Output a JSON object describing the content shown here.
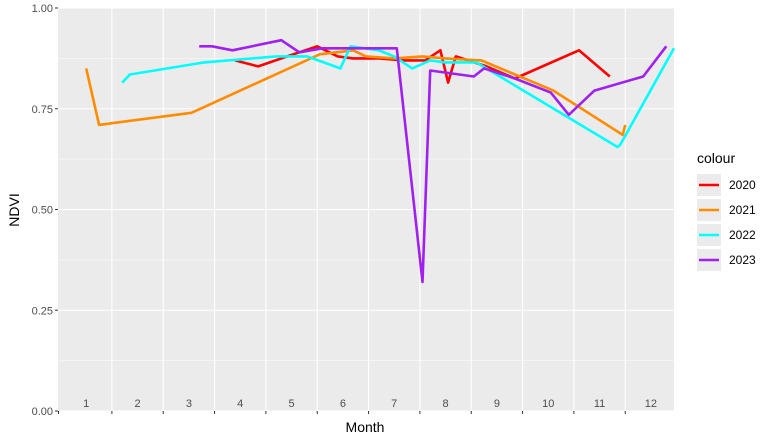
{
  "chart_data": {
    "type": "line",
    "xlabel": "Month",
    "ylabel": "NDVI",
    "ylim": [
      0,
      1
    ],
    "xlim": [
      0.45,
      12.45
    ],
    "x_ticks": [
      1,
      2,
      3,
      4,
      5,
      6,
      7,
      8,
      9,
      10,
      11,
      12
    ],
    "x_tick_labels": [
      "1",
      "2",
      "3",
      "4",
      "5",
      "6",
      "7",
      "8",
      "9",
      "10",
      "11",
      "12"
    ],
    "y_ticks": [
      0,
      0.25,
      0.5,
      0.75,
      1.0
    ],
    "y_tick_labels": [
      "0.00",
      "0.25",
      "0.50",
      "0.75",
      "1.00"
    ],
    "grid": true,
    "legend": {
      "title": "colour",
      "position": "right"
    },
    "series": [
      {
        "name": "2020",
        "color": "#ff0000",
        "x": [
          3.9,
          4.35,
          4.8,
          5.5,
          5.9,
          6.2,
          6.7,
          7.2,
          7.6,
          7.9,
          8.05,
          8.2,
          8.8,
          9.35,
          10.6,
          11.2
        ],
        "y": [
          0.87,
          0.855,
          0.875,
          0.905,
          0.88,
          0.875,
          0.875,
          0.87,
          0.87,
          0.895,
          0.815,
          0.88,
          0.855,
          0.825,
          0.895,
          0.83
        ]
      },
      {
        "name": "2021",
        "color": "#ff8c00",
        "x": [
          1.0,
          1.25,
          3.05,
          5.55,
          6.2,
          6.45,
          7.0,
          7.55,
          8.0,
          8.7,
          10.1,
          11.45,
          11.5
        ],
        "y": [
          0.85,
          0.71,
          0.74,
          0.885,
          0.895,
          0.88,
          0.875,
          0.88,
          0.875,
          0.87,
          0.795,
          0.685,
          0.71
        ]
      },
      {
        "name": "2022",
        "color": "#00ffff",
        "x": [
          1.7,
          1.85,
          3.3,
          4.7,
          5.3,
          5.95,
          6.15,
          6.7,
          7.0,
          7.35,
          7.7,
          8.0,
          8.6,
          11.35,
          11.4,
          12.45
        ],
        "y": [
          0.815,
          0.835,
          0.865,
          0.88,
          0.88,
          0.85,
          0.905,
          0.895,
          0.88,
          0.85,
          0.87,
          0.865,
          0.865,
          0.655,
          0.66,
          0.9
        ]
      },
      {
        "name": "2023",
        "color": "#a020f0",
        "x": [
          3.2,
          3.45,
          3.85,
          4.8,
          5.15,
          5.6,
          6.7,
          7.05,
          7.55,
          7.7,
          8.55,
          8.75,
          9.35,
          10.05,
          10.4,
          10.9,
          11.85,
          12.3
        ],
        "y": [
          0.905,
          0.905,
          0.895,
          0.92,
          0.89,
          0.9,
          0.9,
          0.9,
          0.32,
          0.845,
          0.83,
          0.85,
          0.825,
          0.79,
          0.735,
          0.795,
          0.83,
          0.905
        ]
      }
    ]
  }
}
